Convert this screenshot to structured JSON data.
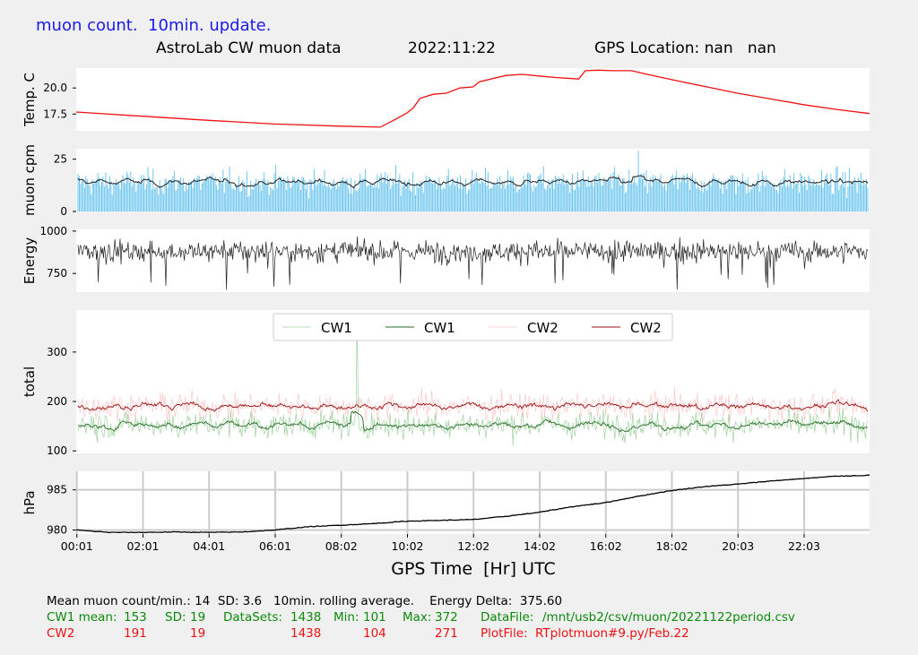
{
  "header": {
    "note": "muon count.  10min. update.",
    "title": "AstroLab CW muon data",
    "date": "2022:11:22",
    "gps": "GPS Location: nan   nan"
  },
  "xaxis": {
    "label": "GPS Time  [Hr] UTC",
    "ticks": [
      "00:01",
      "02:01",
      "04:01",
      "06:01",
      "08:02",
      "10:02",
      "12:02",
      "14:02",
      "16:02",
      "18:02",
      "20:03",
      "22:03"
    ]
  },
  "footer": {
    "line1": "Mean muon count/min.: 14  SD: 3.6   10min. rolling average.    Energy Delta:  375.60",
    "cw1": {
      "label": "CW1 mean:",
      "mean": "153",
      "sd_label": "SD:",
      "sd": "19",
      "ds_label": "DataSets:",
      "ds": "1438",
      "min_label": "Min:",
      "min": "101",
      "max_label": "Max:",
      "max": "372",
      "file_label": "DataFile:",
      "file": "/mnt/usb2/csv/muon/20221122period.csv"
    },
    "cw2": {
      "label": "CW2",
      "mean": "191",
      "sd": "19",
      "ds": "1438",
      "min": "104",
      "max": "271",
      "file_label": "PlotFile:",
      "file": "RTplotmuon#9.py/Feb.22"
    }
  },
  "colors": {
    "temp": "#ee1111",
    "muon_bar": "#6ec6ee",
    "muon_avg": "#222222",
    "energy": "#222222",
    "cw1_raw": "#9fd49f",
    "cw1_avg": "#2a6e2a",
    "cw2_raw": "#ffc8c8",
    "cw2_avg": "#9b1010",
    "pressure": "#000000",
    "grid": "#cccccc"
  },
  "chart_data": [
    {
      "type": "line",
      "ylabel": "Temp. C",
      "yticks": [
        "17.5",
        "20.0"
      ],
      "ylim": [
        15.9,
        21.9
      ],
      "x_hours": [
        0,
        2,
        4,
        6,
        8,
        9.2,
        9.6,
        10.0,
        10.2,
        10.4,
        10.8,
        11.2,
        11.6,
        12.0,
        12.2,
        13.0,
        13.5,
        14.0,
        14.5,
        15.0,
        15.2,
        15.4,
        15.8,
        16.2,
        16.8,
        17.2,
        18.0,
        19.0,
        20.0,
        21.0,
        22.0,
        23.0,
        24.0
      ],
      "series": [
        {
          "values": [
            17.7,
            17.3,
            16.9,
            16.55,
            16.35,
            16.25,
            16.9,
            17.6,
            18.1,
            19.0,
            19.4,
            19.5,
            20.0,
            20.1,
            20.6,
            21.2,
            21.3,
            21.15,
            21.0,
            20.9,
            20.85,
            21.65,
            21.7,
            21.65,
            21.65,
            21.35,
            20.8,
            20.15,
            19.5,
            18.95,
            18.4,
            17.95,
            17.55
          ]
        }
      ]
    },
    {
      "type": "bar+line",
      "ylabel": "muon cpm",
      "yticks": [
        "0",
        "25"
      ],
      "ylim": [
        0,
        30
      ],
      "bar_series": "per-minute muon counts (1438 values, mean 14, SD 3.6)",
      "series": [
        {
          "name": "10min rolling average",
          "approx_mean": 14
        }
      ]
    },
    {
      "type": "line",
      "ylabel": "Energy",
      "yticks": [
        "750",
        "1000"
      ],
      "ylim": [
        640,
        1010
      ],
      "series": [
        {
          "approx_mean": 880,
          "min_visible": 655,
          "max_visible": 995
        }
      ]
    },
    {
      "type": "line",
      "ylabel": "total",
      "yticks": [
        "100",
        "200",
        "300"
      ],
      "ylim": [
        95,
        385
      ],
      "legend": [
        "CW1",
        "CW1",
        "CW2",
        "CW2"
      ],
      "legend_position": "top-center",
      "series": [
        {
          "name": "CW1",
          "values_summary": {
            "mean": 153,
            "sd": 19,
            "min": 101,
            "max": 372
          }
        },
        {
          "name": "CW1",
          "values_summary": {
            "mean": 153
          }
        },
        {
          "name": "CW2",
          "values_summary": {
            "mean": 191,
            "sd": 19,
            "min": 104,
            "max": 271
          }
        },
        {
          "name": "CW2",
          "values_summary": {
            "mean": 191
          }
        }
      ]
    },
    {
      "type": "line",
      "ylabel": "hPa",
      "yticks": [
        "980",
        "985"
      ],
      "ylim": [
        979.5,
        987.3
      ],
      "grid": true,
      "x_hours": [
        0,
        1,
        2,
        3,
        4,
        5,
        6,
        7,
        8,
        9,
        10,
        11,
        12,
        13,
        14,
        15,
        16,
        17,
        18,
        19,
        20,
        21,
        22,
        23,
        24
      ],
      "series": [
        {
          "values": [
            980.0,
            979.7,
            979.7,
            979.75,
            979.7,
            979.75,
            980.0,
            980.4,
            980.6,
            980.8,
            981.1,
            981.2,
            981.3,
            981.7,
            982.2,
            982.9,
            983.4,
            984.2,
            984.9,
            985.4,
            985.7,
            986.1,
            986.4,
            986.7,
            986.8
          ]
        }
      ]
    }
  ]
}
